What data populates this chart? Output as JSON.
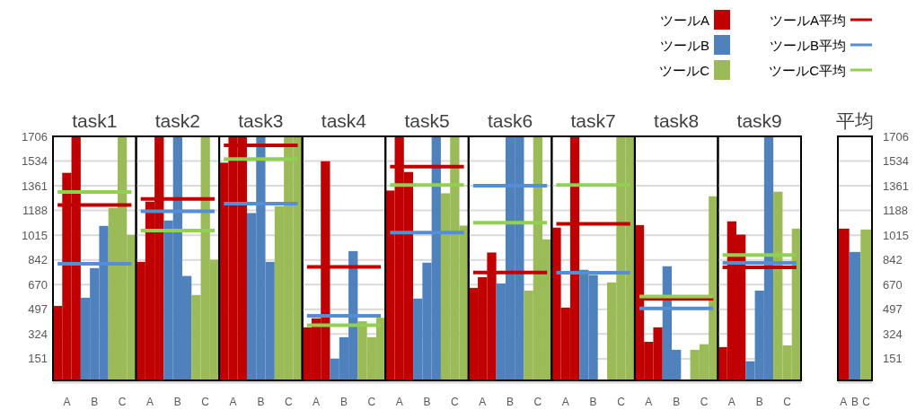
{
  "chart_data": [
    {
      "type": "bar",
      "title": "task1",
      "categories": [
        null,
        "A",
        null,
        null,
        "B",
        null,
        null,
        "C",
        null
      ],
      "ylim": [
        0,
        1706
      ],
      "yticks": [
        151,
        324,
        497,
        670,
        842,
        1015,
        1188,
        1361,
        1534,
        1706
      ],
      "grid": "y",
      "legend": "top right",
      "series": [
        {
          "name": "ツールA",
          "color": "#c00000",
          "values": [
            521,
            1451,
            1706,
            null,
            null,
            null,
            null,
            null,
            null
          ]
        },
        {
          "name": "ツールB",
          "color": "#4f81bd",
          "values": [
            null,
            null,
            null,
            578,
            785,
            1080,
            null,
            null,
            null
          ]
        },
        {
          "name": "ツールC",
          "color": "#9bbb59",
          "values": [
            null,
            null,
            null,
            null,
            null,
            null,
            1206,
            1706,
            1017
          ]
        },
        {
          "name": "ツールA平均",
          "type": "line",
          "color": "#c00000",
          "values": [
            1226,
            1226,
            1226,
            1226,
            1226,
            1226,
            1226,
            1226,
            1226
          ]
        },
        {
          "name": "ツールB平均",
          "type": "line",
          "color": "#558ed5",
          "values": [
            815,
            815,
            815,
            815,
            815,
            815,
            815,
            815,
            815
          ]
        },
        {
          "name": "ツールC平均",
          "type": "line",
          "color": "#92d050",
          "values": [
            1317,
            1317,
            1317,
            1317,
            1317,
            1317,
            1317,
            1317,
            1317
          ]
        }
      ]
    },
    {
      "type": "bar",
      "title": "task2",
      "categories": [
        null,
        "A",
        null,
        null,
        "B",
        null,
        null,
        "C",
        null
      ],
      "ylim": [
        0,
        1706
      ],
      "yticks": [
        151,
        324,
        497,
        670,
        842,
        1015,
        1188,
        1361,
        1534,
        1706
      ],
      "grid": "y",
      "tick_labels": "x",
      "series": [
        {
          "color": "#c00000",
          "values": [
            829,
            1250,
            1706,
            null,
            null,
            null,
            null,
            null,
            null
          ]
        },
        {
          "color": "#4f81bd",
          "values": [
            null,
            null,
            null,
            1118,
            1706,
            730,
            null,
            null,
            null
          ]
        },
        {
          "color": "#9bbb59",
          "values": [
            null,
            null,
            null,
            null,
            null,
            null,
            597,
            1706,
            843
          ]
        },
        {
          "type": "line",
          "color": "#c00000",
          "values": [
            1268,
            1268,
            1268,
            1268,
            1268,
            1268,
            1268,
            1268,
            1268
          ]
        },
        {
          "type": "line",
          "color": "#558ed5",
          "values": [
            1182,
            1182,
            1182,
            1182,
            1182,
            1182,
            1182,
            1182,
            1182
          ]
        },
        {
          "type": "line",
          "color": "#92d050",
          "values": [
            1047,
            1047,
            1047,
            1047,
            1047,
            1047,
            1047,
            1047,
            1047
          ]
        }
      ]
    },
    {
      "type": "bar",
      "title": "task3",
      "categories": [
        null,
        "A",
        null,
        null,
        "B",
        null,
        null,
        "C",
        null
      ],
      "ylim": [
        0,
        1706
      ],
      "yticks": [
        151,
        324,
        497,
        670,
        842,
        1015,
        1188,
        1361,
        1534,
        1706
      ],
      "grid": "y",
      "tick_labels": "x",
      "series": [
        {
          "color": "#c00000",
          "values": [
            1522,
            1706,
            1706,
            null,
            null,
            null,
            null,
            null,
            null
          ]
        },
        {
          "color": "#4f81bd",
          "values": [
            null,
            null,
            null,
            1170,
            1706,
            829,
            null,
            null,
            null
          ]
        },
        {
          "color": "#9bbb59",
          "values": [
            null,
            null,
            null,
            null,
            null,
            null,
            1218,
            1706,
            1706
          ]
        },
        {
          "type": "line",
          "color": "#c00000",
          "values": [
            1643,
            1643,
            1643,
            1643,
            1643,
            1643,
            1643,
            1643,
            1643
          ]
        },
        {
          "type": "line",
          "color": "#558ed5",
          "values": [
            1235,
            1235,
            1235,
            1235,
            1235,
            1235,
            1235,
            1235,
            1235
          ]
        },
        {
          "type": "line",
          "color": "#92d050",
          "values": [
            1547,
            1547,
            1547,
            1547,
            1547,
            1547,
            1547,
            1547,
            1547
          ]
        }
      ]
    },
    {
      "type": "bar",
      "title": "task4",
      "categories": [
        null,
        "A",
        null,
        null,
        "B",
        null,
        null,
        "C",
        null
      ],
      "ylim": [
        0,
        1706
      ],
      "yticks": [
        151,
        324,
        497,
        670,
        842,
        1015,
        1188,
        1361,
        1534,
        1706
      ],
      "grid": "y",
      "tick_labels": "x",
      "series": [
        {
          "color": "#c00000",
          "values": [
            371,
            434,
            1532,
            null,
            null,
            null,
            null,
            null,
            null
          ]
        },
        {
          "color": "#4f81bd",
          "values": [
            null,
            null,
            null,
            151,
            302,
            904,
            null,
            null,
            null
          ]
        },
        {
          "color": "#9bbb59",
          "values": [
            null,
            null,
            null,
            null,
            null,
            null,
            413,
            302,
            438
          ]
        },
        {
          "type": "line",
          "color": "#c00000",
          "values": [
            793,
            793,
            793,
            793,
            793,
            793,
            793,
            793,
            793
          ]
        },
        {
          "type": "line",
          "color": "#558ed5",
          "values": [
            452,
            452,
            452,
            452,
            452,
            452,
            452,
            452,
            452
          ]
        },
        {
          "type": "line",
          "color": "#92d050",
          "values": [
            385,
            385,
            385,
            385,
            385,
            385,
            385,
            385,
            385
          ]
        }
      ]
    },
    {
      "type": "bar",
      "title": "task5",
      "categories": [
        null,
        "A",
        null,
        null,
        "B",
        null,
        null,
        "C",
        null
      ],
      "ylim": [
        0,
        1706
      ],
      "yticks": [
        151,
        324,
        497,
        670,
        842,
        1015,
        1188,
        1361,
        1534,
        1706
      ],
      "grid": "y",
      "tick_labels": "x",
      "series": [
        {
          "color": "#c00000",
          "values": [
            1327,
            1706,
            1457,
            null,
            null,
            null,
            null,
            null,
            null
          ]
        },
        {
          "color": "#4f81bd",
          "values": [
            null,
            null,
            null,
            572,
            823,
            1706,
            null,
            null,
            null
          ]
        },
        {
          "color": "#9bbb59",
          "values": [
            null,
            null,
            null,
            null,
            null,
            null,
            1308,
            1706,
            1082
          ]
        },
        {
          "type": "line",
          "color": "#c00000",
          "values": [
            1494,
            1494,
            1494,
            1494,
            1494,
            1494,
            1494,
            1494,
            1494
          ]
        },
        {
          "type": "line",
          "color": "#558ed5",
          "values": [
            1034,
            1034,
            1034,
            1034,
            1034,
            1034,
            1034,
            1034,
            1034
          ]
        },
        {
          "type": "line",
          "color": "#92d050",
          "values": [
            1365,
            1365,
            1365,
            1365,
            1365,
            1365,
            1365,
            1365,
            1365
          ]
        }
      ]
    },
    {
      "type": "bar",
      "title": "task6",
      "categories": [
        null,
        "A",
        null,
        null,
        "B",
        null,
        null,
        "C",
        null
      ],
      "ylim": [
        0,
        1706
      ],
      "yticks": [
        151,
        324,
        497,
        670,
        842,
        1015,
        1188,
        1361,
        1534,
        1706
      ],
      "grid": "y",
      "tick_labels": "x",
      "series": [
        {
          "color": "#c00000",
          "values": [
            647,
            722,
            894,
            null,
            null,
            null,
            null,
            null,
            null
          ]
        },
        {
          "color": "#4f81bd",
          "values": [
            null,
            null,
            null,
            678,
            1706,
            1706,
            null,
            null,
            null
          ]
        },
        {
          "color": "#9bbb59",
          "values": [
            null,
            null,
            null,
            null,
            null,
            null,
            628,
            1706,
            986
          ]
        },
        {
          "type": "line",
          "color": "#c00000",
          "values": [
            754,
            754,
            754,
            754,
            754,
            754,
            754,
            754,
            754
          ]
        },
        {
          "type": "line",
          "color": "#558ed5",
          "values": [
            1361,
            1361,
            1361,
            1361,
            1361,
            1361,
            1361,
            1361,
            1361
          ]
        },
        {
          "type": "line",
          "color": "#92d050",
          "values": [
            1103,
            1103,
            1103,
            1103,
            1103,
            1103,
            1103,
            1103,
            1103
          ]
        }
      ]
    },
    {
      "type": "bar",
      "title": "task7",
      "categories": [
        null,
        "A",
        null,
        null,
        "B",
        null,
        null,
        "C",
        null
      ],
      "ylim": [
        0,
        1706
      ],
      "yticks": [
        151,
        324,
        497,
        670,
        842,
        1015,
        1188,
        1361,
        1534,
        1706
      ],
      "grid": "y",
      "tick_labels": "x",
      "series": [
        {
          "color": "#c00000",
          "values": [
            1068,
            509,
            1706,
            null,
            null,
            null,
            null,
            null,
            null
          ]
        },
        {
          "color": "#4f81bd",
          "values": [
            null,
            null,
            null,
            773,
            737,
            0,
            null,
            null,
            null
          ]
        },
        {
          "color": "#9bbb59",
          "values": [
            null,
            null,
            null,
            null,
            null,
            null,
            685,
            1706,
            1706
          ]
        },
        {
          "type": "line",
          "color": "#c00000",
          "values": [
            1094,
            1094,
            1094,
            1094,
            1094,
            1094,
            1094,
            1094,
            1094
          ]
        },
        {
          "type": "line",
          "color": "#558ed5",
          "values": [
            752,
            752,
            752,
            752,
            752,
            752,
            752,
            752,
            752
          ]
        },
        {
          "type": "line",
          "color": "#92d050",
          "values": [
            1365,
            1365,
            1365,
            1365,
            1365,
            1365,
            1365,
            1365,
            1365
          ]
        }
      ]
    },
    {
      "type": "bar",
      "title": "task8",
      "categories": [
        null,
        "A",
        null,
        null,
        "B",
        null,
        null,
        "C",
        null
      ],
      "ylim": [
        0,
        1706
      ],
      "yticks": [
        151,
        324,
        497,
        670,
        842,
        1015,
        1188,
        1361,
        1534,
        1706
      ],
      "grid": "y",
      "tick_labels": "x",
      "series": [
        {
          "color": "#c00000",
          "values": [
            1086,
            270,
            371,
            null,
            null,
            null,
            null,
            null,
            null
          ]
        },
        {
          "color": "#4f81bd",
          "values": [
            null,
            null,
            null,
            798,
            214,
            0,
            null,
            null,
            null
          ]
        },
        {
          "color": "#9bbb59",
          "values": [
            null,
            null,
            null,
            null,
            null,
            null,
            214,
            253,
            1287
          ]
        },
        {
          "type": "line",
          "color": "#c00000",
          "values": [
            570,
            570,
            570,
            570,
            570,
            570,
            570,
            570,
            570
          ]
        },
        {
          "type": "line",
          "color": "#558ed5",
          "values": [
            503,
            503,
            503,
            503,
            503,
            503,
            503,
            503,
            503
          ]
        },
        {
          "type": "line",
          "color": "#92d050",
          "values": [
            586,
            586,
            586,
            586,
            586,
            586,
            586,
            586,
            586
          ]
        }
      ]
    },
    {
      "type": "bar",
      "title": "task9",
      "categories": [
        null,
        "A",
        null,
        null,
        "B",
        null,
        null,
        "C",
        null
      ],
      "ylim": [
        0,
        1706
      ],
      "yticks": [
        151,
        324,
        497,
        670,
        842,
        1015,
        1188,
        1361,
        1534,
        1706
      ],
      "grid": "y",
      "tick_labels": "x",
      "series": [
        {
          "color": "#c00000",
          "values": [
            233,
            1112,
            1019,
            null,
            null,
            null,
            null,
            null,
            null
          ]
        },
        {
          "color": "#4f81bd",
          "values": [
            null,
            null,
            null,
            134,
            628,
            1706,
            null,
            null,
            null
          ]
        },
        {
          "color": "#9bbb59",
          "values": [
            null,
            null,
            null,
            null,
            null,
            null,
            1319,
            245,
            1061
          ]
        },
        {
          "type": "line",
          "color": "#c00000",
          "values": [
            791,
            791,
            791,
            791,
            791,
            791,
            791,
            791,
            791
          ]
        },
        {
          "type": "line",
          "color": "#558ed5",
          "values": [
            821,
            821,
            821,
            821,
            821,
            821,
            821,
            821,
            821
          ]
        },
        {
          "type": "line",
          "color": "#92d050",
          "values": [
            877,
            877,
            877,
            877,
            877,
            877,
            877,
            877,
            877
          ]
        }
      ]
    },
    {
      "type": "bar",
      "title": "平均",
      "categories": [
        "A",
        "B",
        "C"
      ],
      "values": [
        1061,
        898,
        1055
      ],
      "colors": [
        "#c00000",
        "#4f81bd",
        "#9bbb59"
      ],
      "ylim": [
        0,
        1706
      ],
      "yticks": [
        151,
        324,
        497,
        670,
        842,
        1015,
        1188,
        1361,
        1534,
        1706
      ],
      "grid": "y"
    }
  ]
}
